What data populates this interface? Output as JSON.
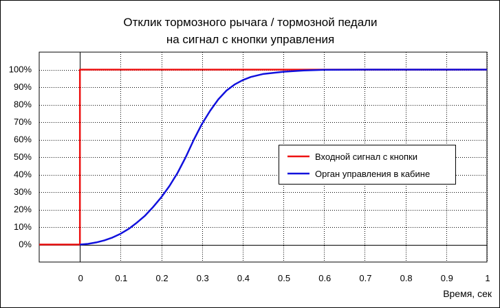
{
  "chart_data": {
    "type": "line",
    "title_lines": [
      "Отклик тормозного рычага / тормозной педали",
      "на сигнал с кнопки управления"
    ],
    "xlabel": "Время, сек",
    "ylabel": "",
    "xlim": [
      -0.1,
      1.0
    ],
    "ylim": [
      -0.1,
      1.1
    ],
    "x_ticks": [
      0,
      0.1,
      0.2,
      0.3,
      0.4,
      0.5,
      0.6,
      0.7,
      0.8,
      0.9,
      1
    ],
    "x_tick_labels": [
      "0",
      "0.1",
      "0.2",
      "0.3",
      "0.4",
      "0.5",
      "0.6",
      "0.7",
      "0.8",
      "0.9",
      "1"
    ],
    "y_ticks": [
      0,
      0.1,
      0.2,
      0.3,
      0.4,
      0.5,
      0.6,
      0.7,
      0.8,
      0.9,
      1.0
    ],
    "y_tick_labels": [
      "0%",
      "10%",
      "20%",
      "30%",
      "40%",
      "50%",
      "60%",
      "70%",
      "80%",
      "90%",
      "100%"
    ],
    "grid": true,
    "legend_position": "center-right",
    "series": [
      {
        "name": "Входной сигнал с кнопки",
        "color": "#ee1111",
        "points": [
          [
            -0.1,
            0
          ],
          [
            0,
            0
          ],
          [
            0,
            1
          ],
          [
            1.0,
            1
          ]
        ]
      },
      {
        "name": "Орган управления в кабине",
        "color": "#1111dd",
        "points": [
          [
            0,
            0
          ],
          [
            0.02,
            0.004
          ],
          [
            0.04,
            0.012
          ],
          [
            0.06,
            0.024
          ],
          [
            0.08,
            0.04
          ],
          [
            0.1,
            0.062
          ],
          [
            0.12,
            0.09
          ],
          [
            0.14,
            0.125
          ],
          [
            0.16,
            0.165
          ],
          [
            0.18,
            0.215
          ],
          [
            0.2,
            0.27
          ],
          [
            0.22,
            0.335
          ],
          [
            0.24,
            0.41
          ],
          [
            0.26,
            0.5
          ],
          [
            0.28,
            0.6
          ],
          [
            0.3,
            0.69
          ],
          [
            0.32,
            0.765
          ],
          [
            0.34,
            0.83
          ],
          [
            0.36,
            0.88
          ],
          [
            0.38,
            0.915
          ],
          [
            0.4,
            0.94
          ],
          [
            0.42,
            0.958
          ],
          [
            0.45,
            0.975
          ],
          [
            0.5,
            0.988
          ],
          [
            0.55,
            0.995
          ],
          [
            0.6,
            0.999
          ],
          [
            0.7,
            1.0
          ],
          [
            0.8,
            1.0
          ],
          [
            0.9,
            1.0
          ],
          [
            1.0,
            1.0
          ]
        ]
      }
    ]
  },
  "colors": {
    "grid": "#000000",
    "axis": "#000000",
    "background": "#ffffff"
  }
}
